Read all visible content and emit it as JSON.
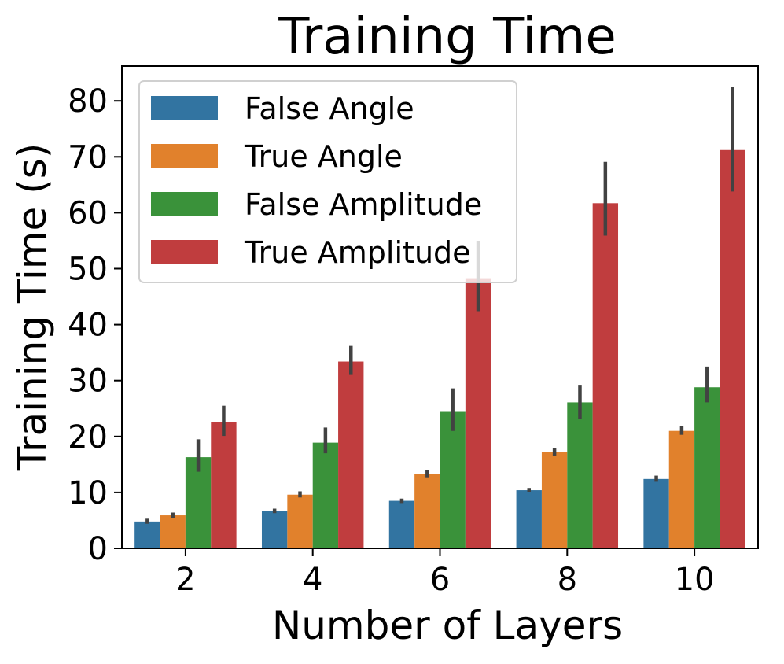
{
  "chart_data": {
    "type": "bar",
    "title": "Training Time",
    "xlabel": "Number of Layers",
    "ylabel": "Training Time (s)",
    "categories": [
      "2",
      "4",
      "6",
      "8",
      "10"
    ],
    "ylim": [
      0,
      86
    ],
    "yticks": [
      0,
      10,
      20,
      30,
      40,
      50,
      60,
      70,
      80
    ],
    "grid": false,
    "legend_position": "top-left",
    "series": [
      {
        "name": "False Angle",
        "color": "#3274a1",
        "values": [
          4.8,
          6.7,
          8.5,
          10.4,
          12.4
        ],
        "error_low": [
          4.4,
          6.3,
          8.1,
          10.0,
          11.9
        ],
        "error_high": [
          5.3,
          7.1,
          8.9,
          10.8,
          13.0
        ]
      },
      {
        "name": "True Angle",
        "color": "#e1812c",
        "values": [
          5.9,
          9.6,
          13.3,
          17.2,
          21.0
        ],
        "error_low": [
          5.4,
          9.1,
          12.7,
          16.6,
          20.3
        ],
        "error_high": [
          6.4,
          10.2,
          14.0,
          18.0,
          21.9
        ]
      },
      {
        "name": "False Amplitude",
        "color": "#3a923a",
        "values": [
          16.3,
          18.9,
          24.4,
          26.1,
          28.8
        ],
        "error_low": [
          13.7,
          17.0,
          21.0,
          23.2,
          26.1
        ],
        "error_high": [
          19.5,
          21.6,
          28.6,
          29.1,
          32.5
        ]
      },
      {
        "name": "True Amplitude",
        "color": "#c03d3e",
        "values": [
          22.6,
          33.4,
          48.3,
          61.7,
          71.2
        ],
        "error_low": [
          20.1,
          31.0,
          42.4,
          55.9,
          63.8
        ],
        "error_high": [
          25.5,
          36.2,
          55.0,
          69.1,
          82.5
        ]
      }
    ]
  }
}
